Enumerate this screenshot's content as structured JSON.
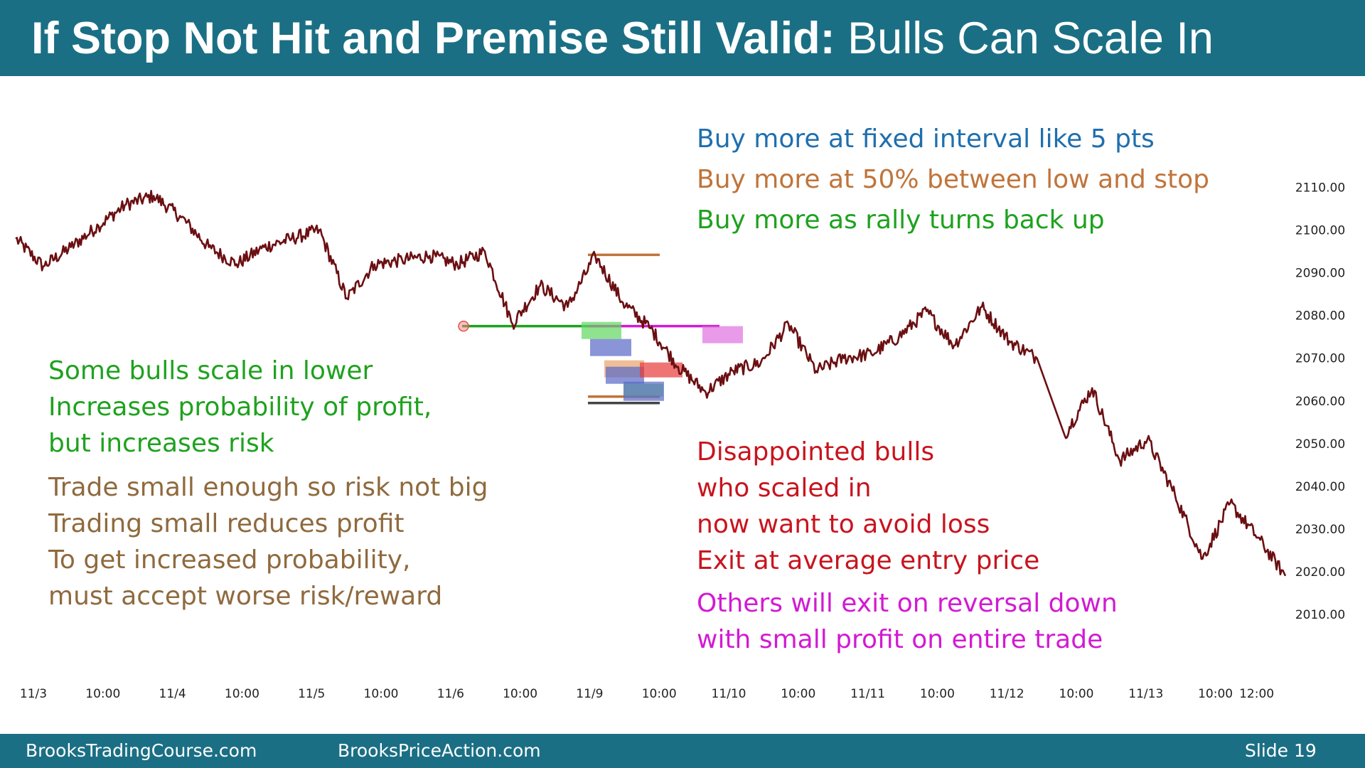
{
  "slide": {
    "title_bold": "If Stop Not Hit and Premise Still Valid:",
    "title_rest": " Bulls Can Scale In",
    "footer_left": "BrooksTradingCourse.com",
    "footer_mid": "BrooksPriceAction.com",
    "footer_right": "Slide  19"
  },
  "annotations": {
    "scale_methods": {
      "blue": "Buy more at fixed interval like 5 pts",
      "orange": "Buy more at 50% between low and stop",
      "green": "Buy more as rally turns back up"
    },
    "bulls_lower": [
      "Some bulls scale in lower",
      "Increases probability of profit,",
      "but increases risk"
    ],
    "trade_small": [
      "Trade small enough so risk not big",
      "Trading small reduces profit",
      "To get increased probability,",
      "must accept worse risk/reward"
    ],
    "disappointed": [
      "Disappointed bulls",
      "who scaled in",
      "now want to avoid loss",
      "Exit at average entry price"
    ],
    "others": [
      "Others will exit on reversal down",
      "with small profit on entire trade"
    ]
  },
  "colors": {
    "header_bg": "#1b6f84",
    "price_line": "#6b0f12",
    "blue_text": "#1f6fae",
    "orange_text": "#c0743a",
    "green_text": "#1ea21e",
    "brown_text": "#8f6a3e",
    "red_text": "#c8141e",
    "magenta_text": "#d21ad2"
  },
  "chart_data": {
    "type": "line",
    "title": "",
    "xlabel": "",
    "ylabel": "",
    "x_tick_labels": [
      "11/3",
      "10:00",
      "11/4",
      "10:00",
      "11/5",
      "10:00",
      "11/6",
      "10:00",
      "11/9",
      "10:00",
      "11/10",
      "10:00",
      "11/11",
      "10:00",
      "11/12",
      "10:00",
      "11/13",
      "10:00",
      "12:00"
    ],
    "y_tick_labels": [
      "2110.00",
      "2100.00",
      "2090.00",
      "2080.00",
      "2070.00",
      "2060.00",
      "2050.00",
      "2040.00",
      "2030.00",
      "2020.00",
      "2010.00"
    ],
    "ylim": [
      2004,
      2116
    ],
    "y_axis_position": "right",
    "grid": false,
    "series": [
      {
        "color": "#6b0f12",
        "points": [
          [
            "11/3 open",
            2098
          ],
          [
            "11/3 early",
            2091.5
          ],
          [
            "11/3 mid",
            2096
          ],
          [
            "11/3 late",
            2101
          ],
          [
            "11/3 close",
            2106
          ],
          [
            "11/4 open",
            2108
          ],
          [
            "11/4 early",
            2103
          ],
          [
            "11/4 mid",
            2096
          ],
          [
            "11/4 late",
            2092
          ],
          [
            "11/4 close",
            2096
          ],
          [
            "11/5 open",
            2098
          ],
          [
            "11/5 early",
            2100
          ],
          [
            "11/5 mid",
            2084
          ],
          [
            "11/5 late",
            2092
          ],
          [
            "11/5 close",
            2093
          ],
          [
            "11/6 open",
            2094
          ],
          [
            "11/6 early",
            2092
          ],
          [
            "11/6 mid",
            2095
          ],
          [
            "11/6 late",
            2078
          ],
          [
            "11/6 10:00",
            2087
          ],
          [
            "11/6 late 2",
            2082
          ],
          [
            "11/6 close",
            2094
          ],
          [
            "11/9 open",
            2083
          ],
          [
            "11/9 early",
            2077
          ],
          [
            "11/9 mid",
            2068
          ],
          [
            "11/9 low",
            2062
          ],
          [
            "11/9 late",
            2067
          ],
          [
            "11/10 open",
            2069
          ],
          [
            "11/10 high",
            2078
          ],
          [
            "11/10 mid",
            2067
          ],
          [
            "11/10 late",
            2070
          ],
          [
            "11/10 close",
            2071
          ],
          [
            "11/11 open",
            2075
          ],
          [
            "11/11 high",
            2081
          ],
          [
            "11/11 mid",
            2073
          ],
          [
            "11/11 high 2",
            2082
          ],
          [
            "11/11 close",
            2074
          ],
          [
            "11/12 open",
            2070
          ],
          [
            "11/12 gap",
            2052
          ],
          [
            "11/12 high",
            2063
          ],
          [
            "11/12 mid",
            2046
          ],
          [
            "11/12 close",
            2051
          ],
          [
            "11/13 open",
            2038
          ],
          [
            "11/13 early",
            2023
          ],
          [
            "11/13 mid",
            2036
          ],
          [
            "11/13 late",
            2028
          ],
          [
            "11/13 12:00",
            2019
          ]
        ]
      }
    ],
    "levels": [
      {
        "name": "orange stop above",
        "value": 2094.2,
        "color": "#c0743a"
      },
      {
        "name": "green entry",
        "value": 2077.5,
        "color": "#1ea21e"
      },
      {
        "name": "magenta entry",
        "value": 2077.5,
        "color": "#d21ad2"
      },
      {
        "name": "orange stop below",
        "value": 2061,
        "color": "#c0743a"
      },
      {
        "name": "dark bottom",
        "value": 2059.5,
        "color": "#444444"
      }
    ],
    "boxes": [
      {
        "color": "#5fd75f",
        "low": 2074.5,
        "high": 2078.5
      },
      {
        "color": "#5868c8",
        "low": 2070.5,
        "high": 2074.5
      },
      {
        "color": "#e8a26a",
        "low": 2065.5,
        "high": 2069.5
      },
      {
        "color": "#5868c8",
        "low": 2064,
        "high": 2068
      },
      {
        "color": "#e83a3a",
        "low": 2065.5,
        "high": 2069
      },
      {
        "color": "#5fd75f",
        "low": 2061,
        "high": 2064
      },
      {
        "color": "#5868c8",
        "low": 2060,
        "high": 2064.5
      },
      {
        "color": "#e070e0",
        "low": 2073.5,
        "high": 2077.5
      }
    ]
  }
}
